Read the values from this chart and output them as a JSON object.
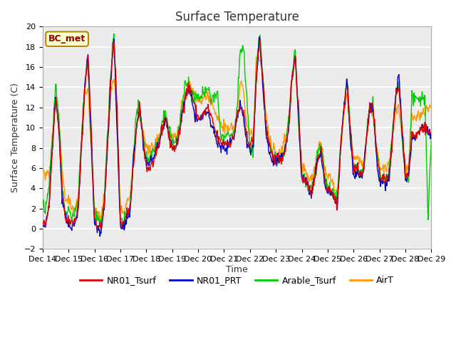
{
  "title": "Surface Temperature",
  "ylabel": "Surface Temperature (C)",
  "xlabel": "Time",
  "ylim": [
    -2,
    20
  ],
  "fig_facecolor": "#ffffff",
  "ax_facecolor": "#ebebeb",
  "grid_color": "#ffffff",
  "colors": {
    "NR01_Tsurf": "#dd0000",
    "NR01_PRT": "#0000cc",
    "Arable_Tsurf": "#00cc00",
    "AirT": "#ff9900"
  },
  "legend_labels": [
    "NR01_Tsurf",
    "NR01_PRT",
    "Arable_Tsurf",
    "AirT"
  ],
  "station_label": "BC_met",
  "x_ticks": [
    "Dec 14",
    "Dec 15",
    "Dec 16",
    "Dec 17",
    "Dec 18",
    "Dec 19",
    "Dec 20",
    "Dec 21",
    "Dec 22",
    "Dec 23",
    "Dec 24",
    "Dec 25",
    "Dec 26",
    "Dec 27",
    "Dec 28",
    "Dec 29"
  ],
  "linewidth": 1.0,
  "title_fontsize": 12,
  "tick_fontsize": 8,
  "label_fontsize": 9
}
